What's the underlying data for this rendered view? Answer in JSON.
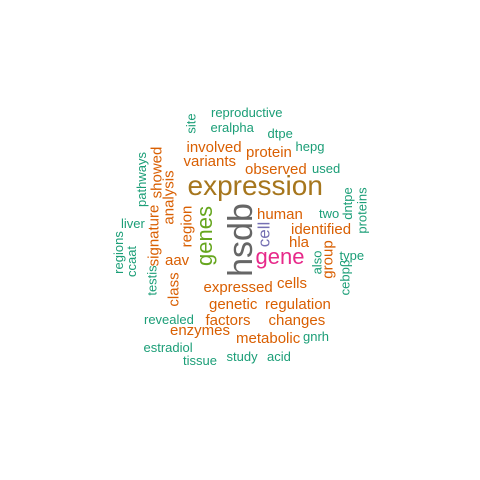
{
  "colors": {
    "teal": "#1b9e77",
    "orange": "#d95f02",
    "brown": "#a6761d",
    "gray": "#666666",
    "green": "#66a61e",
    "magenta": "#e7298a",
    "purple": "#7570b3"
  },
  "words": [
    {
      "text": "hsdb",
      "color": "gray",
      "rotated": true
    },
    {
      "text": "expression",
      "color": "brown",
      "rotated": false
    },
    {
      "text": "gene",
      "color": "magenta",
      "rotated": false
    },
    {
      "text": "genes",
      "color": "green",
      "rotated": true
    },
    {
      "text": "cell",
      "color": "purple",
      "rotated": true
    },
    {
      "text": "human",
      "color": "orange",
      "rotated": false
    },
    {
      "text": "identified",
      "color": "orange",
      "rotated": false
    },
    {
      "text": "hla",
      "color": "orange",
      "rotated": false
    },
    {
      "text": "cells",
      "color": "orange",
      "rotated": false
    },
    {
      "text": "expressed",
      "color": "orange",
      "rotated": false
    },
    {
      "text": "genetic",
      "color": "orange",
      "rotated": false
    },
    {
      "text": "regulation",
      "color": "orange",
      "rotated": false
    },
    {
      "text": "factors",
      "color": "orange",
      "rotated": false
    },
    {
      "text": "changes",
      "color": "orange",
      "rotated": false
    },
    {
      "text": "enzymes",
      "color": "orange",
      "rotated": false
    },
    {
      "text": "metabolic",
      "color": "orange",
      "rotated": false
    },
    {
      "text": "observed",
      "color": "orange",
      "rotated": false
    },
    {
      "text": "protein",
      "color": "orange",
      "rotated": false
    },
    {
      "text": "involved",
      "color": "orange",
      "rotated": false
    },
    {
      "text": "variants",
      "color": "orange",
      "rotated": false
    },
    {
      "text": "region",
      "color": "orange",
      "rotated": true
    },
    {
      "text": "aav",
      "color": "orange",
      "rotated": false
    },
    {
      "text": "analysis",
      "color": "orange",
      "rotated": true
    },
    {
      "text": "showed",
      "color": "orange",
      "rotated": true
    },
    {
      "text": "signature",
      "color": "orange",
      "rotated": true
    },
    {
      "text": "class",
      "color": "orange",
      "rotated": true
    },
    {
      "text": "group",
      "color": "orange",
      "rotated": true
    },
    {
      "text": "reproductive",
      "color": "teal",
      "rotated": false
    },
    {
      "text": "eralpha",
      "color": "teal",
      "rotated": false
    },
    {
      "text": "site",
      "color": "teal",
      "rotated": true
    },
    {
      "text": "dtpe",
      "color": "teal",
      "rotated": false
    },
    {
      "text": "hepg",
      "color": "teal",
      "rotated": false
    },
    {
      "text": "used",
      "color": "teal",
      "rotated": false
    },
    {
      "text": "pathways",
      "color": "teal",
      "rotated": true
    },
    {
      "text": "liver",
      "color": "teal",
      "rotated": false
    },
    {
      "text": "regions",
      "color": "teal",
      "rotated": true
    },
    {
      "text": "ccaat",
      "color": "teal",
      "rotated": true
    },
    {
      "text": "testis",
      "color": "teal",
      "rotated": true
    },
    {
      "text": "two",
      "color": "teal",
      "rotated": false
    },
    {
      "text": "dntpe",
      "color": "teal",
      "rotated": true
    },
    {
      "text": "proteins",
      "color": "teal",
      "rotated": true
    },
    {
      "text": "type",
      "color": "teal",
      "rotated": false
    },
    {
      "text": "also",
      "color": "teal",
      "rotated": true
    },
    {
      "text": "cebpβ",
      "color": "teal",
      "rotated": true
    },
    {
      "text": "revealed",
      "color": "teal",
      "rotated": false
    },
    {
      "text": "gnrh",
      "color": "teal",
      "rotated": false
    },
    {
      "text": "estradiol",
      "color": "teal",
      "rotated": false
    },
    {
      "text": "study",
      "color": "teal",
      "rotated": false
    },
    {
      "text": "acid",
      "color": "teal",
      "rotated": false
    },
    {
      "text": "tissue",
      "color": "teal",
      "rotated": false
    }
  ]
}
